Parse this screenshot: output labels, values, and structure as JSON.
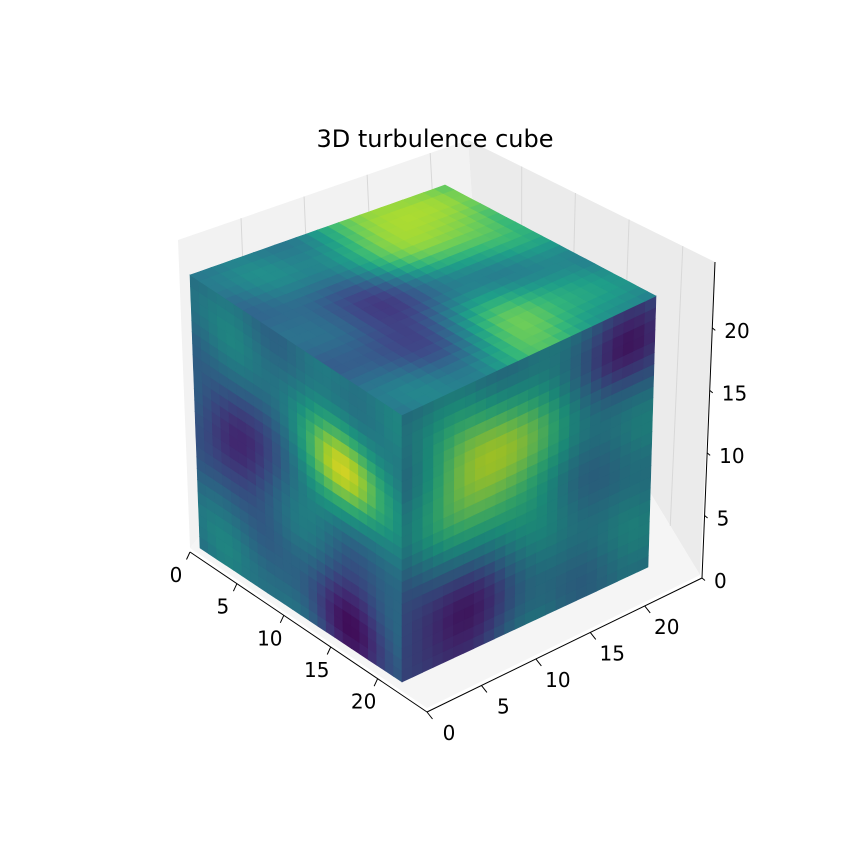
{
  "chart_data": {
    "type": "heatmap",
    "variant": "3d-voxel-cube",
    "title": "3D turbulence cube",
    "colormap": "viridis",
    "grid_size": [
      24,
      24,
      24
    ],
    "x_ticks": [
      "0",
      "5",
      "10",
      "15",
      "20"
    ],
    "y_ticks": [
      "0",
      "5",
      "10",
      "15",
      "20"
    ],
    "z_ticks": [
      "0",
      "5",
      "10",
      "15",
      "20"
    ],
    "xlim": [
      0,
      24
    ],
    "ylim": [
      0,
      24
    ],
    "zlim": [
      0,
      24
    ],
    "grid": true,
    "pane_color": "#f2f2f2",
    "field_features": [
      {
        "face": "top",
        "center": [
          18,
          20
        ],
        "value": 0.95,
        "spread": 5
      },
      {
        "face": "top",
        "center": [
          8,
          9
        ],
        "value": 0.15,
        "spread": 5
      },
      {
        "face": "top",
        "center": [
          14,
          3
        ],
        "value": 0.85,
        "spread": 4
      },
      {
        "face": "front-left",
        "center": [
          17,
          15
        ],
        "value": 0.95,
        "spread": 3
      },
      {
        "face": "front-left",
        "center": [
          4,
          11
        ],
        "value": 0.05,
        "spread": 3
      },
      {
        "face": "front-left",
        "center": [
          18,
          2
        ],
        "value": 0.1,
        "spread": 4
      },
      {
        "face": "front-right",
        "center": [
          8,
          15
        ],
        "value": 0.95,
        "spread": 4
      },
      {
        "face": "front-right",
        "center": [
          4,
          2
        ],
        "value": 0.05,
        "spread": 4
      },
      {
        "face": "front-right",
        "center": [
          22,
          21
        ],
        "value": 0.05,
        "spread": 3
      }
    ]
  }
}
